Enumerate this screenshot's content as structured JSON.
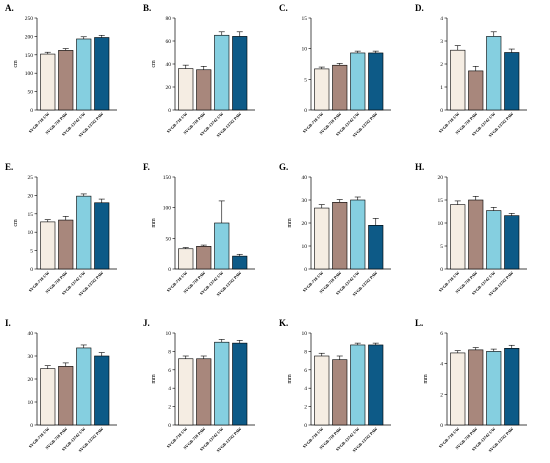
{
  "figure": {
    "colors": [
      "#f5ede3",
      "#a8877c",
      "#85cfe0",
      "#0d5a87"
    ],
    "bar_edge_color": "#000000"
  },
  "chart_data": [
    {
      "panel": "A.",
      "type": "bar",
      "ylabel": "cm",
      "ylim": [
        0,
        250
      ],
      "yticks": [
        0,
        50,
        100,
        150,
        200,
        250
      ],
      "categories": [
        "SVGB-718 UW",
        "SVGB-718 PAW",
        "SVGB-13742 UW",
        "SVGB-13742 PAW"
      ],
      "values": [
        152,
        162,
        193,
        197
      ],
      "errors": [
        5,
        5,
        6,
        6
      ]
    },
    {
      "panel": "B.",
      "type": "bar",
      "ylabel": "cm",
      "ylim": [
        0,
        80
      ],
      "yticks": [
        0,
        20,
        40,
        60,
        80
      ],
      "categories": [
        "SVGB-718 UW",
        "SVGB-718 PAW",
        "SVGB-13742 UW",
        "SVGB-13742 PAW"
      ],
      "values": [
        36,
        35,
        65,
        64
      ],
      "errors": [
        3,
        3,
        3,
        4
      ]
    },
    {
      "panel": "C.",
      "type": "bar",
      "ylabel": "",
      "ylim": [
        0,
        15
      ],
      "yticks": [
        0,
        5,
        10,
        15
      ],
      "categories": [
        "SVGB-718 UW",
        "SVGB-718 PAW",
        "SVGB-13742 UW",
        "SVGB-13742 PAW"
      ],
      "values": [
        6.7,
        7.3,
        9.3,
        9.3
      ],
      "errors": [
        0.3,
        0.3,
        0.3,
        0.3
      ]
    },
    {
      "panel": "D.",
      "type": "bar",
      "ylabel": "",
      "ylim": [
        0,
        4
      ],
      "yticks": [
        0,
        1,
        2,
        3,
        4
      ],
      "categories": [
        "SVGB-718 UW",
        "SVGB-718 PAW",
        "SVGB-13742 UW",
        "SVGB-13742 PAW"
      ],
      "values": [
        2.6,
        1.7,
        3.2,
        2.5
      ],
      "errors": [
        0.2,
        0.2,
        0.2,
        0.15
      ]
    },
    {
      "panel": "E.",
      "type": "bar",
      "ylabel": "cm",
      "ylim": [
        0,
        25
      ],
      "yticks": [
        0,
        5,
        10,
        15,
        20,
        25
      ],
      "categories": [
        "SVGB-718 UW",
        "SVGB-718 PAW",
        "SVGB-13742 UW",
        "SVGB-13742 PAW"
      ],
      "values": [
        12.8,
        13.3,
        19.8,
        18
      ],
      "errors": [
        0.6,
        1,
        0.6,
        1
      ]
    },
    {
      "panel": "F.",
      "type": "bar",
      "ylabel": "mm",
      "ylim": [
        0,
        150
      ],
      "yticks": [
        0,
        50,
        100,
        150
      ],
      "categories": [
        "SVGB-718 UW",
        "SVGB-718 PAW",
        "SVGB-13742 UW",
        "SVGB-13742 PAW"
      ],
      "values": [
        33,
        37,
        75,
        21
      ],
      "errors": [
        2,
        2,
        36,
        3
      ]
    },
    {
      "panel": "G.",
      "type": "bar",
      "ylabel": "mm",
      "ylim": [
        0,
        40
      ],
      "yticks": [
        0,
        10,
        20,
        30,
        40
      ],
      "categories": [
        "SVGB-718 UW",
        "SVGB-718 PAW",
        "SVGB-13742 UW",
        "SVGB-13742 PAW"
      ],
      "values": [
        26.5,
        29,
        30,
        19
      ],
      "errors": [
        1.5,
        1.2,
        1.3,
        3
      ]
    },
    {
      "panel": "H.",
      "type": "bar",
      "ylabel": "",
      "ylim": [
        0,
        20
      ],
      "yticks": [
        0,
        5,
        10,
        15,
        20
      ],
      "categories": [
        "SVGB-718 UW",
        "SVGB-718 PAW",
        "SVGB-13742 UW",
        "SVGB-13742 PAW"
      ],
      "values": [
        14,
        15,
        12.7,
        11.6
      ],
      "errors": [
        0.8,
        0.8,
        0.7,
        0.5
      ]
    },
    {
      "panel": "I.",
      "type": "bar",
      "ylabel": "",
      "ylim": [
        0,
        40
      ],
      "yticks": [
        0,
        10,
        20,
        30,
        40
      ],
      "categories": [
        "SVGB-718 UW",
        "SVGB-718 PAW",
        "SVGB-13742 UW",
        "SVGB-13742 PAW"
      ],
      "values": [
        24.5,
        25.5,
        33.5,
        30
      ],
      "errors": [
        1.3,
        1.5,
        1.3,
        1.5
      ]
    },
    {
      "panel": "J.",
      "type": "bar",
      "ylabel": "mm",
      "ylim": [
        0,
        10
      ],
      "yticks": [
        0,
        2,
        4,
        6,
        8,
        10
      ],
      "categories": [
        "SVGB-718 UW",
        "SVGB-718 PAW",
        "SVGB-13742 UW",
        "SVGB-13742 PAW"
      ],
      "values": [
        7.2,
        7.2,
        9.0,
        8.9
      ],
      "errors": [
        0.3,
        0.3,
        0.3,
        0.3
      ]
    },
    {
      "panel": "K.",
      "type": "bar",
      "ylabel": "mm",
      "ylim": [
        0,
        10
      ],
      "yticks": [
        0,
        2,
        4,
        6,
        8,
        10
      ],
      "categories": [
        "SVGB-718 UW",
        "SVGB-718 PAW",
        "SVGB-13742 UW",
        "SVGB-13742 PAW"
      ],
      "values": [
        7.5,
        7.1,
        8.7,
        8.7
      ],
      "errors": [
        0.3,
        0.4,
        0.2,
        0.2
      ]
    },
    {
      "panel": "L.",
      "type": "bar",
      "ylabel": "mm",
      "ylim": [
        0,
        6
      ],
      "yticks": [
        0,
        2,
        4,
        6
      ],
      "categories": [
        "SVGB-718 UW",
        "SVGB-718 PAW",
        "SVGB-13742 UW",
        "SVGB-13742 PAW"
      ],
      "values": [
        4.7,
        4.9,
        4.8,
        5.0
      ],
      "errors": [
        0.15,
        0.15,
        0.15,
        0.2
      ]
    }
  ]
}
